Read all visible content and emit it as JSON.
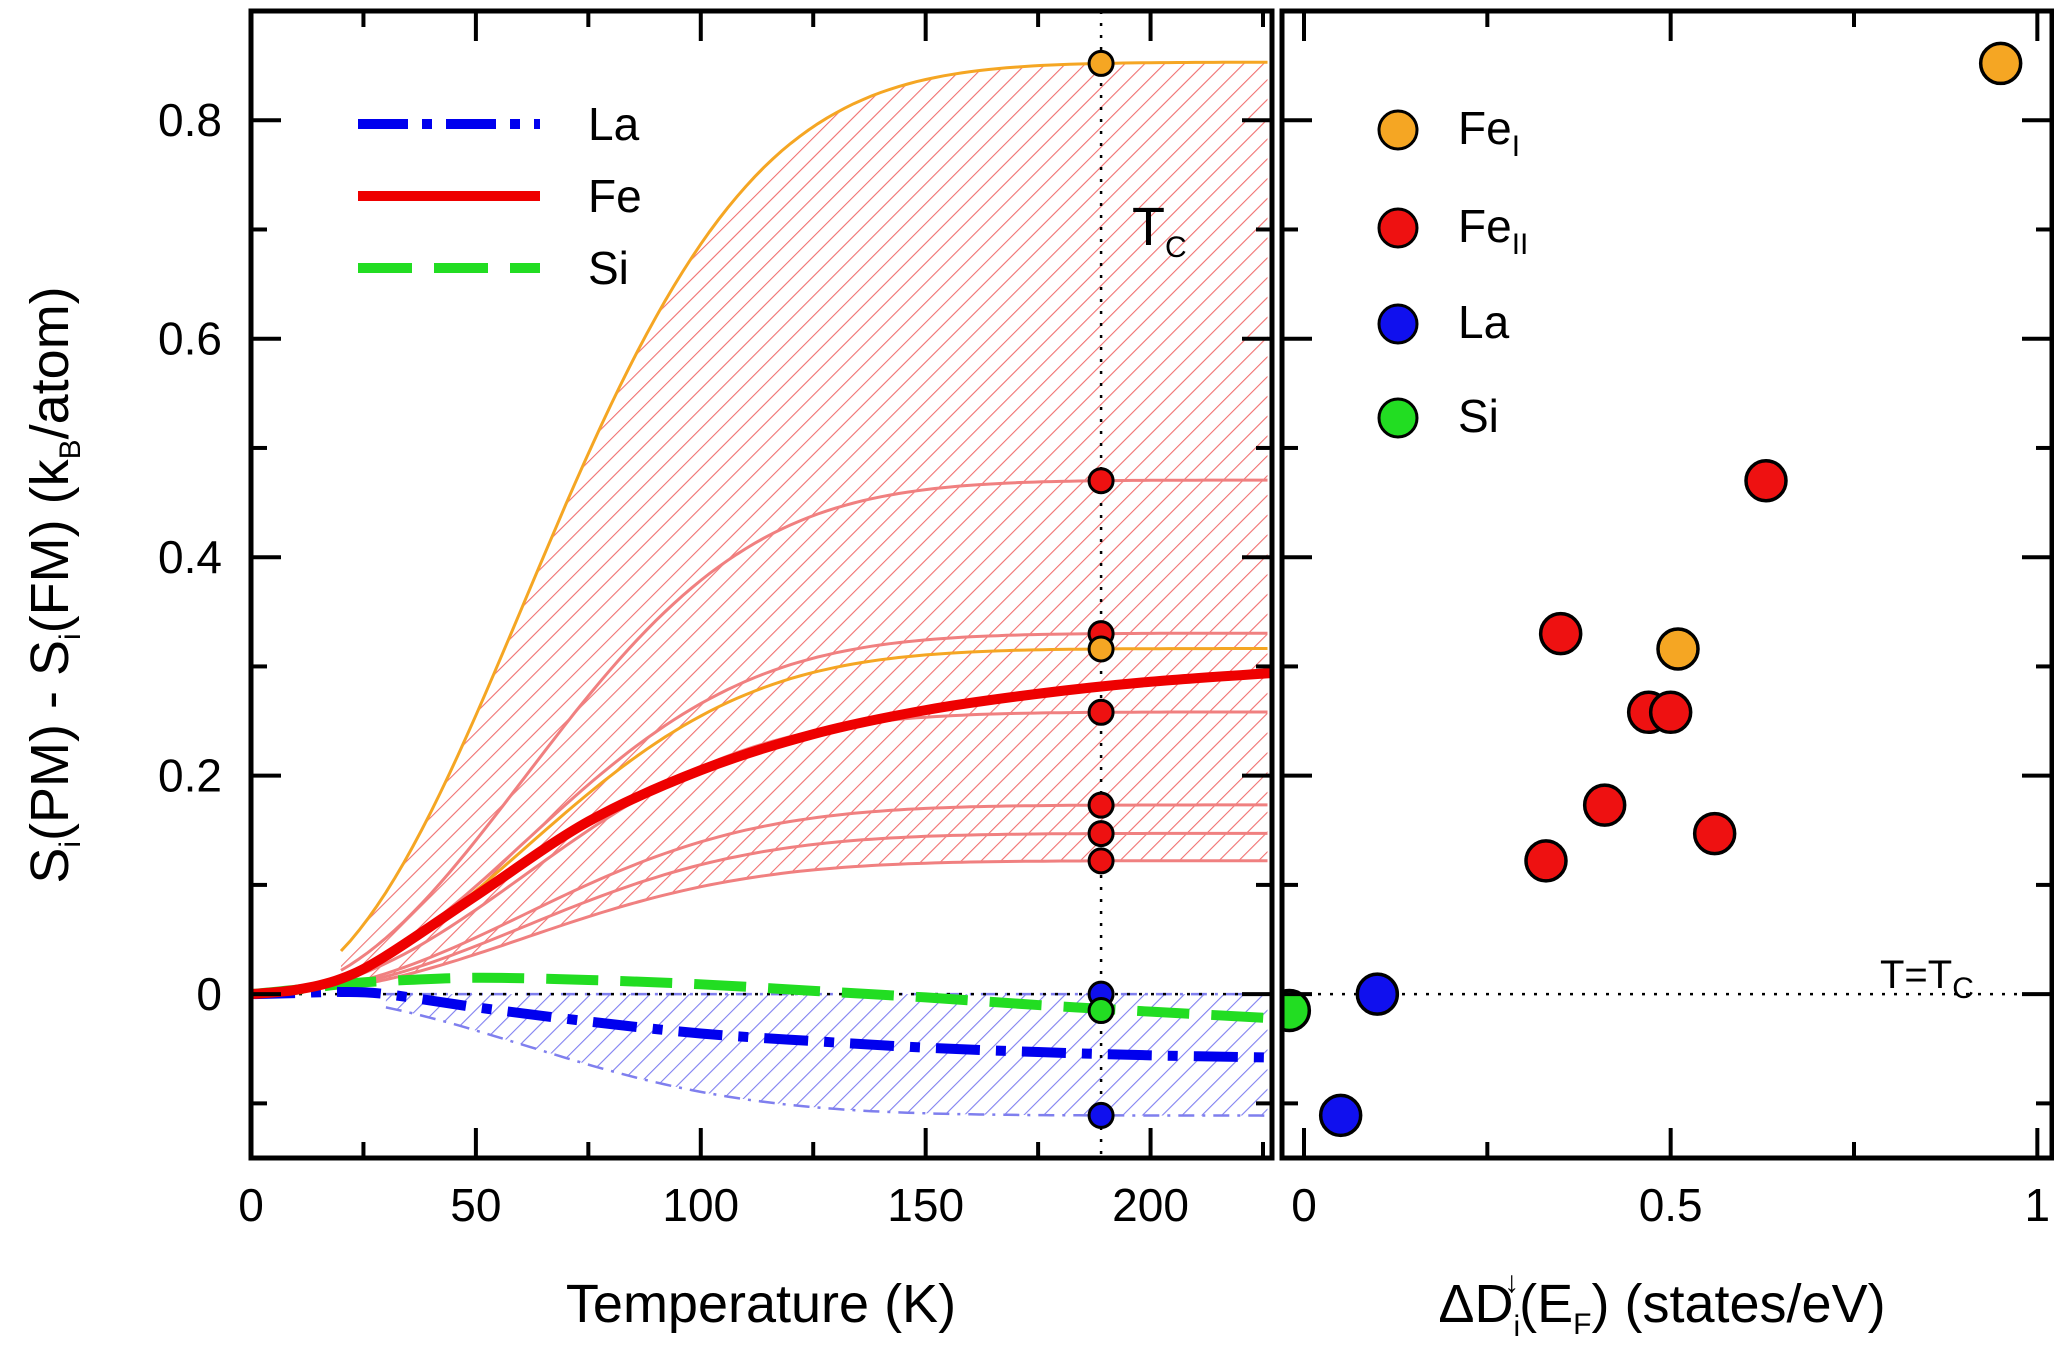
{
  "chart_data": [
    {
      "type": "line",
      "title": "",
      "xlabel": "Temperature  (K)",
      "ylabel": "S_i(PM) - S_i(FM)  (k_B/atom)",
      "ylabel_parts": {
        "s1": "S",
        "i1": "i",
        "pm": "(PM) - S",
        "i2": "i",
        "fm": "(FM)  (k",
        "b": "B",
        "unit": "/atom)"
      },
      "xlim": [
        0,
        227
      ],
      "ylim": [
        -0.15,
        0.9
      ],
      "xticks": [
        0,
        50,
        100,
        150,
        200
      ],
      "xtick_labels": [
        "0",
        "50",
        "100",
        "150",
        "200"
      ],
      "xminor": [
        25,
        75,
        125,
        175,
        225
      ],
      "yticks": [
        0,
        0.2,
        0.4,
        0.6,
        0.8
      ],
      "ytick_labels": [
        "0",
        "0.2",
        "0.4",
        "0.6",
        "0.8"
      ],
      "yminor": [
        -0.1,
        0.1,
        0.3,
        0.5,
        0.7
      ],
      "legend_position": "top-left",
      "legend": [
        {
          "name": "La",
          "color": "#0000ee",
          "style": "dash-dot"
        },
        {
          "name": "Fe",
          "color": "#ee0000",
          "style": "solid"
        },
        {
          "name": "Si",
          "color": "#22dd22",
          "style": "dashed"
        }
      ],
      "annotation": {
        "text": "T",
        "sub": "C",
        "x": 189
      },
      "tc": 189,
      "series": [
        {
          "name": "La",
          "color": "#0000ee",
          "style": "dash-dot",
          "x": [
            0,
            10,
            20,
            30,
            50,
            75,
            100,
            125,
            150,
            175,
            200,
            227
          ],
          "y": [
            0,
            0.001,
            0.002,
            0.0,
            -0.012,
            -0.025,
            -0.036,
            -0.043,
            -0.049,
            -0.053,
            -0.056,
            -0.058
          ]
        },
        {
          "name": "Fe",
          "color": "#ee0000",
          "style": "solid",
          "x": [
            0,
            10,
            20,
            30,
            50,
            75,
            100,
            125,
            150,
            175,
            200,
            227
          ],
          "y": [
            0,
            0.004,
            0.014,
            0.035,
            0.09,
            0.158,
            0.205,
            0.238,
            0.26,
            0.275,
            0.286,
            0.294
          ]
        },
        {
          "name": "Si",
          "color": "#22dd22",
          "style": "dashed",
          "x": [
            0,
            10,
            20,
            30,
            50,
            75,
            100,
            125,
            150,
            175,
            200,
            227
          ],
          "y": [
            0,
            0.004,
            0.009,
            0.012,
            0.015,
            0.013,
            0.009,
            0.003,
            -0.003,
            -0.01,
            -0.016,
            -0.022
          ]
        }
      ],
      "fe_sites": [
        {
          "kind": "FeI",
          "color": "#f5a623",
          "at_tc": 0.852,
          "at_max": 0.895
        },
        {
          "kind": "FeI",
          "color": "#f5a623",
          "at_tc": 0.316,
          "at_max": 0.335
        },
        {
          "kind": "FeII",
          "color": "#f08080",
          "at_tc": 0.47,
          "at_max": 0.49
        },
        {
          "kind": "FeII",
          "color": "#f08080",
          "at_tc": 0.33,
          "at_max": 0.345
        },
        {
          "kind": "FeII",
          "color": "#f08080",
          "at_tc": 0.258,
          "at_max": 0.272
        },
        {
          "kind": "FeII",
          "color": "#f08080",
          "at_tc": 0.173,
          "at_max": 0.18
        },
        {
          "kind": "FeII",
          "color": "#f08080",
          "at_tc": 0.147,
          "at_max": 0.153
        },
        {
          "kind": "FeII",
          "color": "#f08080",
          "at_tc": 0.122,
          "at_max": 0.127
        }
      ],
      "la_sites": [
        {
          "color": "#7f7fee",
          "at_tc": -0.111,
          "at_max": -0.115
        },
        {
          "color": "#7f7fee",
          "at_tc": 0.0,
          "at_max": 0.001
        }
      ],
      "tc_points": [
        {
          "group": "FeI",
          "color": "#f5a623",
          "y": 0.852
        },
        {
          "group": "FeII",
          "color": "#ee1111",
          "y": 0.47
        },
        {
          "group": "FeII",
          "color": "#ee1111",
          "y": 0.33
        },
        {
          "group": "FeI",
          "color": "#f5a623",
          "y": 0.316
        },
        {
          "group": "FeII",
          "color": "#ee1111",
          "y": 0.258
        },
        {
          "group": "FeII",
          "color": "#ee1111",
          "y": 0.173
        },
        {
          "group": "FeII",
          "color": "#ee1111",
          "y": 0.147
        },
        {
          "group": "FeII",
          "color": "#ee1111",
          "y": 0.122
        },
        {
          "group": "La",
          "color": "#1010ee",
          "y": 0.0
        },
        {
          "group": "Si",
          "color": "#22dd22",
          "y": -0.015
        },
        {
          "group": "La",
          "color": "#1010ee",
          "y": -0.111
        }
      ]
    },
    {
      "type": "scatter",
      "title": "",
      "xlabel": "ΔD_i↓(E_F)  (states/eV)",
      "xlabel_parts": {
        "delta": "ΔD",
        "i": "i",
        "arrow": "↓",
        "ef": "(E",
        "f": "F",
        "rest": ")  (states/eV)"
      },
      "xlim": [
        -0.03,
        1.02
      ],
      "ylim": [
        -0.15,
        0.9
      ],
      "xticks": [
        0,
        0.5,
        1
      ],
      "xtick_labels": [
        "0",
        "0.5",
        "1"
      ],
      "xminor": [
        0.25,
        0.75
      ],
      "legend_position": "top-left",
      "legend": [
        {
          "name": "Fe",
          "sub": "I",
          "color": "#f5a623"
        },
        {
          "name": "Fe",
          "sub": "II",
          "color": "#ee1111"
        },
        {
          "name": "La",
          "sub": "",
          "color": "#1010ee"
        },
        {
          "name": "Si",
          "sub": "",
          "color": "#22dd22"
        }
      ],
      "annotation": {
        "text": "T=T",
        "sub": "C"
      },
      "series": [
        {
          "name": "FeI",
          "color": "#f5a623",
          "points": [
            [
              0.95,
              0.852
            ],
            [
              0.51,
              0.316
            ]
          ]
        },
        {
          "name": "FeII",
          "color": "#ee1111",
          "points": [
            [
              0.63,
              0.47
            ],
            [
              0.35,
              0.33
            ],
            [
              0.47,
              0.258
            ],
            [
              0.5,
              0.258
            ],
            [
              0.41,
              0.173
            ],
            [
              0.56,
              0.147
            ],
            [
              0.33,
              0.122
            ]
          ]
        },
        {
          "name": "La",
          "color": "#1010ee",
          "points": [
            [
              0.1,
              0.0
            ],
            [
              0.05,
              -0.111
            ]
          ]
        },
        {
          "name": "Si",
          "color": "#22dd22",
          "points": [
            [
              -0.02,
              -0.015
            ]
          ]
        }
      ]
    }
  ]
}
